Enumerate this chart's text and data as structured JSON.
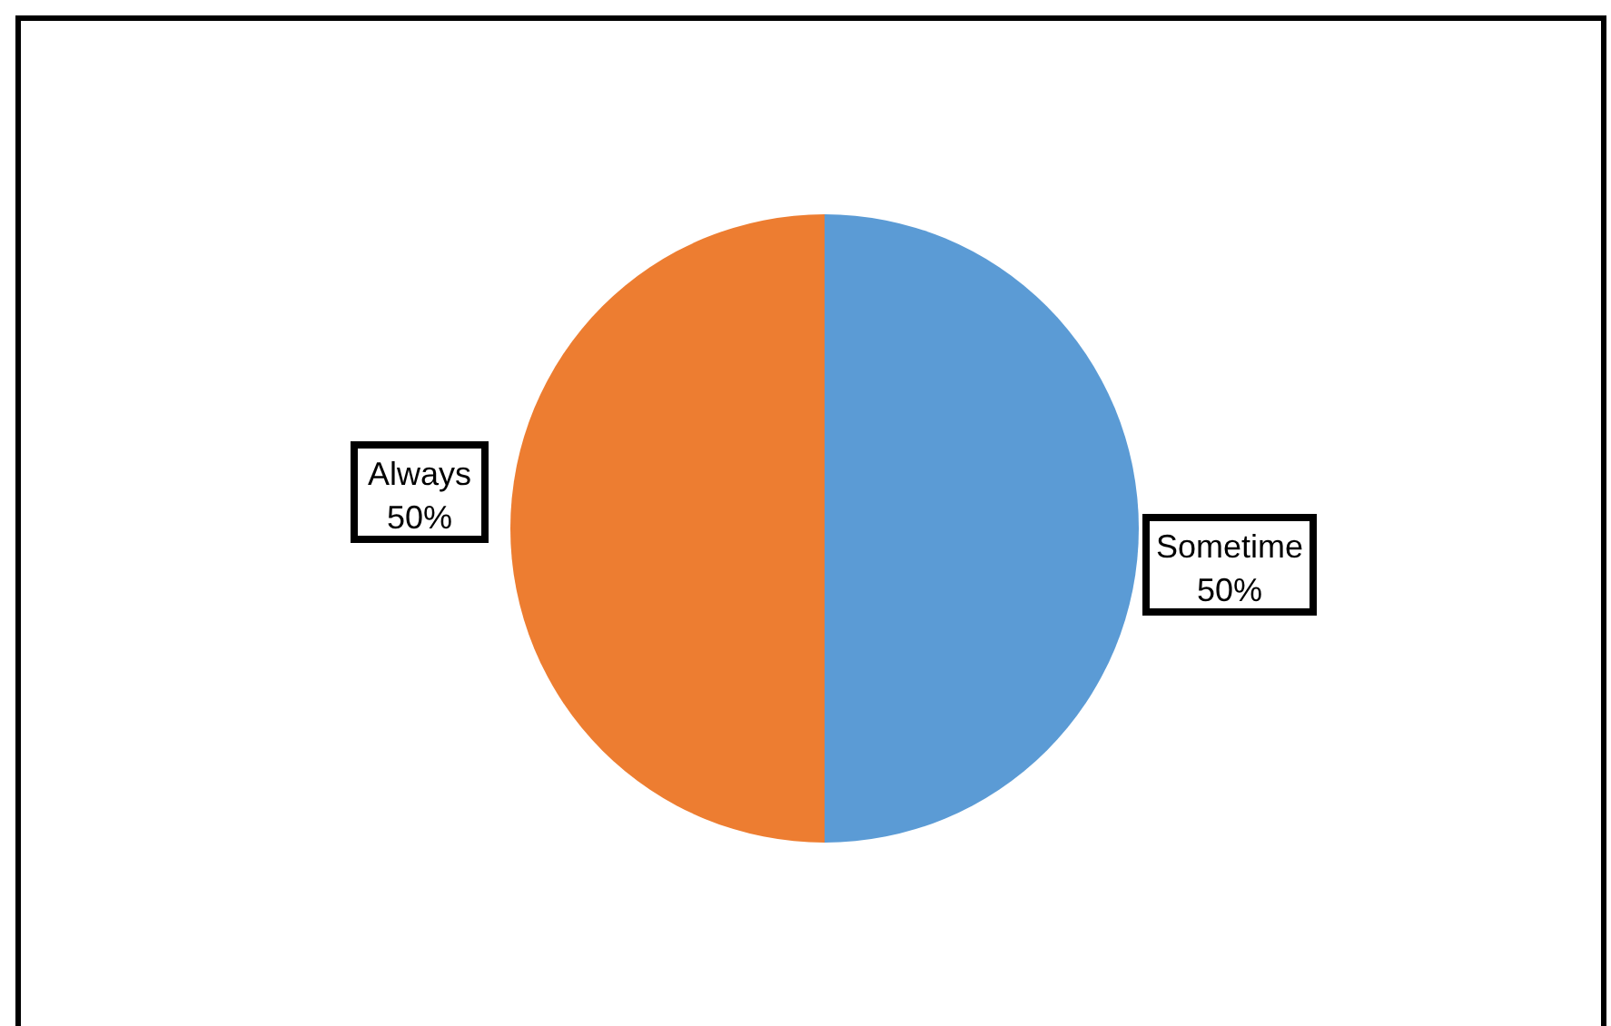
{
  "chart_data": {
    "type": "pie",
    "categories": [
      "Sometime",
      "Always"
    ],
    "values": [
      50,
      50
    ],
    "colors": [
      "#5b9bd5",
      "#ed7d31"
    ],
    "value_labels": [
      "50%",
      "50%"
    ],
    "legend": false
  }
}
